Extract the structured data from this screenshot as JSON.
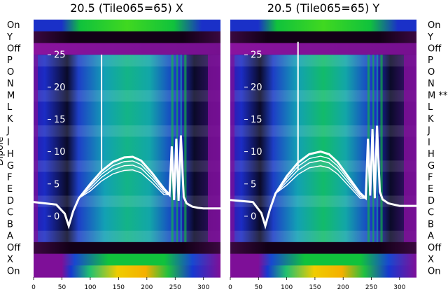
{
  "chart_data": [
    {
      "type": "heatmap",
      "title": "20.5 (Tile065=65) X",
      "ylabel": "Dipole",
      "row_labels": [
        "On",
        "Y",
        "Off",
        "P",
        "O",
        "N",
        "M",
        "L",
        "K",
        "J",
        "I",
        "H",
        "G",
        "F",
        "E",
        "D",
        "C",
        "B",
        "A",
        "Off",
        "X",
        "On"
      ],
      "x_ticks": [
        0,
        50,
        100,
        150,
        200,
        250,
        300
      ],
      "xlim": [
        0,
        330
      ],
      "overlay_ticks": [
        25,
        20,
        15,
        10,
        5,
        0
      ],
      "overlay": {
        "type": "line",
        "name": "",
        "x": [
          0,
          40,
          55,
          62,
          70,
          80,
          100,
          120,
          140,
          160,
          175,
          190,
          210,
          230,
          240,
          244,
          248,
          252,
          256,
          260,
          265,
          270,
          280,
          290,
          300,
          310,
          320,
          330
        ],
        "y": [
          2.2,
          1.8,
          0.4,
          -1.5,
          0.8,
          2.8,
          5.0,
          7.0,
          8.4,
          9.1,
          9.2,
          8.6,
          6.6,
          4.3,
          3.3,
          10.8,
          2.5,
          12.0,
          2.4,
          12.5,
          3.0,
          2.0,
          1.5,
          1.3,
          1.2,
          1.2,
          1.2,
          1.2
        ]
      }
    },
    {
      "type": "heatmap",
      "title": "20.5 (Tile065=65) Y",
      "row_labels": [
        "On",
        "Y",
        "Off",
        "P",
        "O",
        "N",
        "M **",
        "L",
        "K",
        "J",
        "I",
        "H",
        "G",
        "F",
        "E",
        "D",
        "C",
        "B",
        "A",
        "Off",
        "X",
        "On"
      ],
      "x_ticks": [
        0,
        50,
        100,
        150,
        200,
        250,
        300
      ],
      "xlim": [
        0,
        330
      ],
      "overlay_ticks": [
        25,
        20,
        15,
        10,
        5,
        0
      ],
      "overlay": {
        "type": "line",
        "name": "",
        "x": [
          0,
          40,
          55,
          62,
          70,
          80,
          100,
          120,
          140,
          160,
          175,
          190,
          210,
          230,
          240,
          244,
          248,
          252,
          256,
          260,
          265,
          270,
          280,
          290,
          300,
          310,
          320,
          330
        ],
        "y": [
          2.5,
          2.2,
          0.5,
          -1.5,
          1.0,
          3.5,
          6.2,
          8.3,
          9.6,
          10.0,
          9.6,
          8.4,
          6.0,
          3.6,
          2.8,
          12.0,
          3.2,
          13.5,
          2.8,
          14.0,
          3.8,
          2.6,
          2.0,
          1.8,
          1.6,
          1.6,
          1.6,
          1.6
        ]
      }
    }
  ],
  "colors": {
    "purple": "#7e0f98",
    "dark": "#1a0020",
    "blue": "#1528c8",
    "teal": "#0fa6a6",
    "green": "#10c23c",
    "yellow": "#f2d000",
    "white": "#ffffff"
  }
}
